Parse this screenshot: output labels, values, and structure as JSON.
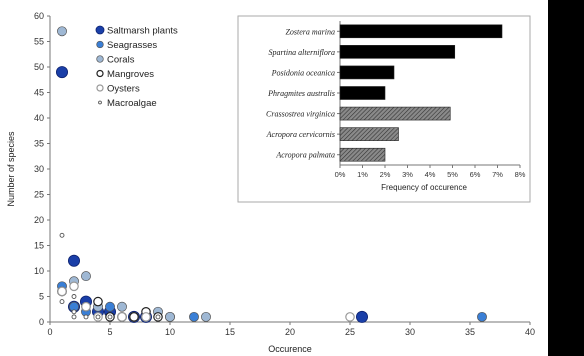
{
  "chart_data": [
    {
      "type": "scatter",
      "xlabel": "Occurence",
      "ylabel": "Number of species",
      "xlim": [
        0,
        40
      ],
      "ylim": [
        0,
        60
      ],
      "x_ticks": [
        "0",
        "5",
        "10",
        "15",
        "20",
        "25",
        "30",
        "35",
        "40"
      ],
      "y_ticks": [
        "0",
        "5",
        "10",
        "15",
        "20",
        "25",
        "30",
        "35",
        "40",
        "45",
        "50",
        "55",
        "60"
      ],
      "legend_position": "top-left",
      "series": [
        {
          "name": "Saltmarsh plants",
          "marker": "large-filled",
          "color": "#1a3fa8",
          "points": [
            [
              1,
              49
            ],
            [
              2,
              12
            ],
            [
              3,
              4
            ],
            [
              2,
              3
            ],
            [
              4,
              2
            ],
            [
              5,
              2
            ],
            [
              7,
              1
            ],
            [
              8,
              1
            ],
            [
              26,
              1
            ]
          ]
        },
        {
          "name": "Seagrasses",
          "marker": "filled",
          "color": "#3a7fd6",
          "points": [
            [
              1,
              7
            ],
            [
              2,
              3
            ],
            [
              3,
              2
            ],
            [
              5,
              3
            ],
            [
              6,
              1
            ],
            [
              7,
              1
            ],
            [
              8,
              1
            ],
            [
              10,
              1
            ],
            [
              12,
              1
            ],
            [
              36,
              1
            ]
          ]
        },
        {
          "name": "Corals",
          "marker": "filled",
          "color": "#9fb8d4",
          "points": [
            [
              1,
              57
            ],
            [
              1,
              6
            ],
            [
              2,
              8
            ],
            [
              3,
              9
            ],
            [
              4,
              3
            ],
            [
              6,
              3
            ],
            [
              7,
              1
            ],
            [
              9,
              2
            ],
            [
              10,
              1
            ],
            [
              13,
              1
            ]
          ]
        },
        {
          "name": "Mangroves",
          "marker": "open",
          "color": "#222222",
          "points": [
            [
              3,
              3
            ],
            [
              4,
              4
            ],
            [
              5,
              1
            ],
            [
              7,
              1
            ],
            [
              8,
              2
            ],
            [
              9,
              1
            ]
          ]
        },
        {
          "name": "Oysters",
          "marker": "open",
          "color": "#999999",
          "points": [
            [
              1,
              6
            ],
            [
              2,
              7
            ],
            [
              3,
              3
            ],
            [
              4,
              1
            ],
            [
              6,
              1
            ],
            [
              8,
              1
            ],
            [
              25,
              1
            ]
          ]
        },
        {
          "name": "Macroalgae",
          "marker": "small-open",
          "color": "#555555",
          "points": [
            [
              1,
              17
            ],
            [
              1,
              4
            ],
            [
              2,
              5
            ],
            [
              2,
              2
            ],
            [
              2,
              1
            ],
            [
              3,
              1
            ],
            [
              4,
              1
            ],
            [
              5,
              1
            ],
            [
              9,
              1
            ]
          ]
        }
      ]
    },
    {
      "type": "bar",
      "orientation": "horizontal",
      "xlabel": "Frequency of occurence",
      "xlim": [
        0,
        8
      ],
      "x_ticks": [
        "0%",
        "1%",
        "2%",
        "3%",
        "4%",
        "5%",
        "6%",
        "7%",
        "8%"
      ],
      "categories": [
        "Zostera marina",
        "Spartina alterniflora",
        "Posidonia oceanica",
        "Phragmites australis",
        "Crassostrea virginica",
        "Acropora cervicornis",
        "Acropora palmata"
      ],
      "values": [
        7.2,
        5.1,
        2.4,
        2.0,
        4.9,
        2.6,
        2.0
      ],
      "fills": [
        "solid",
        "solid",
        "solid",
        "solid",
        "hatched",
        "hatched",
        "hatched"
      ]
    }
  ]
}
